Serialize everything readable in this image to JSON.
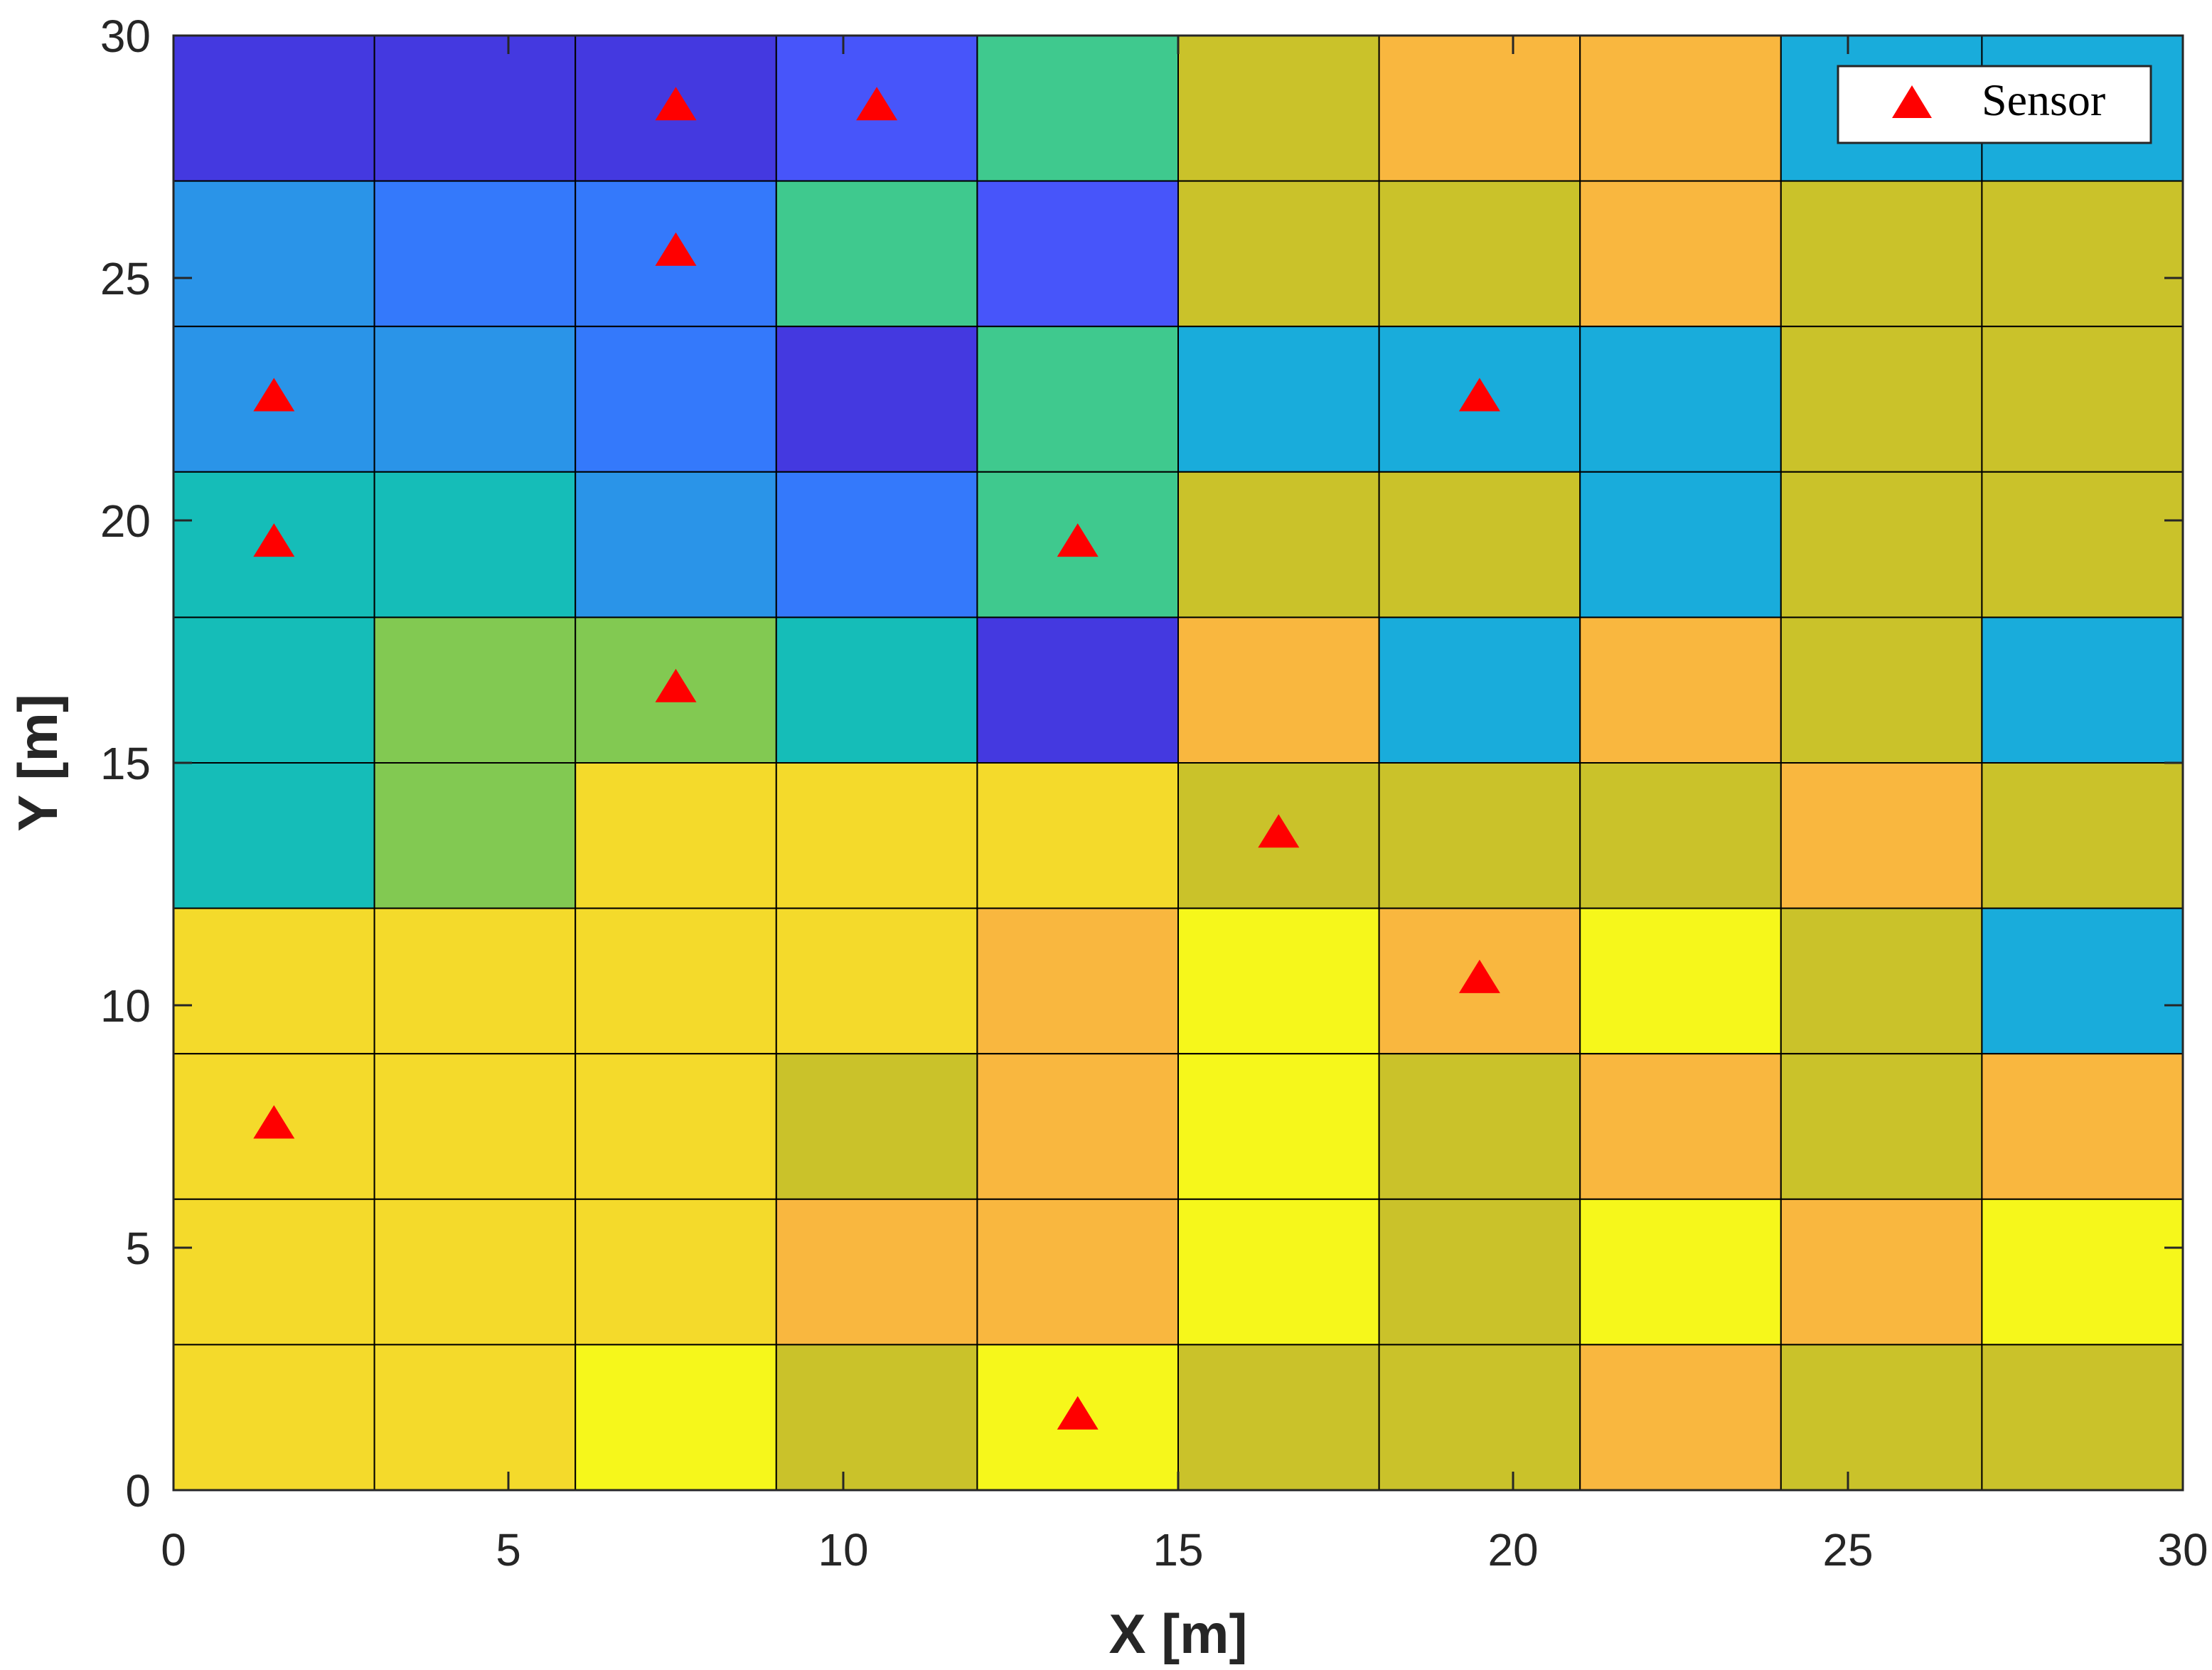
{
  "chart_data": {
    "type": "heatmap",
    "xlabel": "X [m]",
    "ylabel": "Y [m]",
    "xlim": [
      0,
      30
    ],
    "ylim": [
      0,
      30
    ],
    "xticks": [
      0,
      5,
      10,
      15,
      20,
      25,
      30
    ],
    "yticks": [
      0,
      5,
      10,
      15,
      20,
      25,
      30
    ],
    "grid": {
      "x_edges": [
        0,
        3,
        6,
        9,
        12,
        15,
        18,
        21,
        24,
        27,
        30
      ],
      "y_edges": [
        0,
        3,
        6,
        9,
        12,
        15,
        18,
        21,
        24,
        27,
        30
      ]
    },
    "palette": {
      "dark_blue": "#4439e0",
      "blue": "#3479fb",
      "light_blue": "#4755fa",
      "sky_blue": "#2a94e8",
      "cyan": "#19acdb",
      "teal": "#15bdb8",
      "green": "#3fc98e",
      "lime": "#82c952",
      "olive": "#cac22a",
      "orange": "#f9b73f",
      "gold": "#f4da2b",
      "yellow": "#f6f71b"
    },
    "cells_top_to_bottom": [
      [
        "dark_blue",
        "dark_blue",
        "dark_blue",
        "light_blue",
        "green",
        "olive",
        "orange",
        "orange",
        "cyan",
        "cyan"
      ],
      [
        "sky_blue",
        "blue",
        "blue",
        "green",
        "light_blue",
        "olive",
        "olive",
        "orange",
        "olive",
        "olive"
      ],
      [
        "sky_blue",
        "sky_blue",
        "blue",
        "dark_blue",
        "green",
        "cyan",
        "cyan",
        "cyan",
        "olive",
        "olive"
      ],
      [
        "teal",
        "teal",
        "sky_blue",
        "blue",
        "green",
        "olive",
        "olive",
        "cyan",
        "olive",
        "olive"
      ],
      [
        "teal",
        "lime",
        "lime",
        "teal",
        "dark_blue",
        "orange",
        "cyan",
        "orange",
        "olive",
        "cyan"
      ],
      [
        "teal",
        "lime",
        "gold",
        "gold",
        "gold",
        "olive",
        "olive",
        "olive",
        "orange",
        "olive"
      ],
      [
        "gold",
        "gold",
        "gold",
        "gold",
        "orange",
        "yellow",
        "orange",
        "yellow",
        "olive",
        "cyan"
      ],
      [
        "gold",
        "gold",
        "gold",
        "olive",
        "orange",
        "yellow",
        "olive",
        "orange",
        "olive",
        "orange"
      ],
      [
        "gold",
        "gold",
        "gold",
        "orange",
        "orange",
        "yellow",
        "olive",
        "yellow",
        "orange",
        "yellow"
      ],
      [
        "gold",
        "gold",
        "yellow",
        "olive",
        "yellow",
        "olive",
        "olive",
        "orange",
        "olive",
        "olive"
      ]
    ],
    "series": [
      {
        "name": "Sensor",
        "type": "scatter",
        "marker": "triangle",
        "color": "#ff0000",
        "points": [
          [
            7.5,
            28.5
          ],
          [
            10.5,
            28.5
          ],
          [
            7.5,
            25.5
          ],
          [
            1.5,
            22.5
          ],
          [
            19.5,
            22.5
          ],
          [
            1.5,
            19.5
          ],
          [
            13.5,
            19.5
          ],
          [
            7.5,
            16.5
          ],
          [
            16.5,
            13.5
          ],
          [
            19.5,
            10.5
          ],
          [
            1.5,
            7.5
          ],
          [
            13.5,
            1.5
          ]
        ]
      }
    ],
    "legend": {
      "position": "top-right",
      "entries": [
        "Sensor"
      ]
    }
  }
}
